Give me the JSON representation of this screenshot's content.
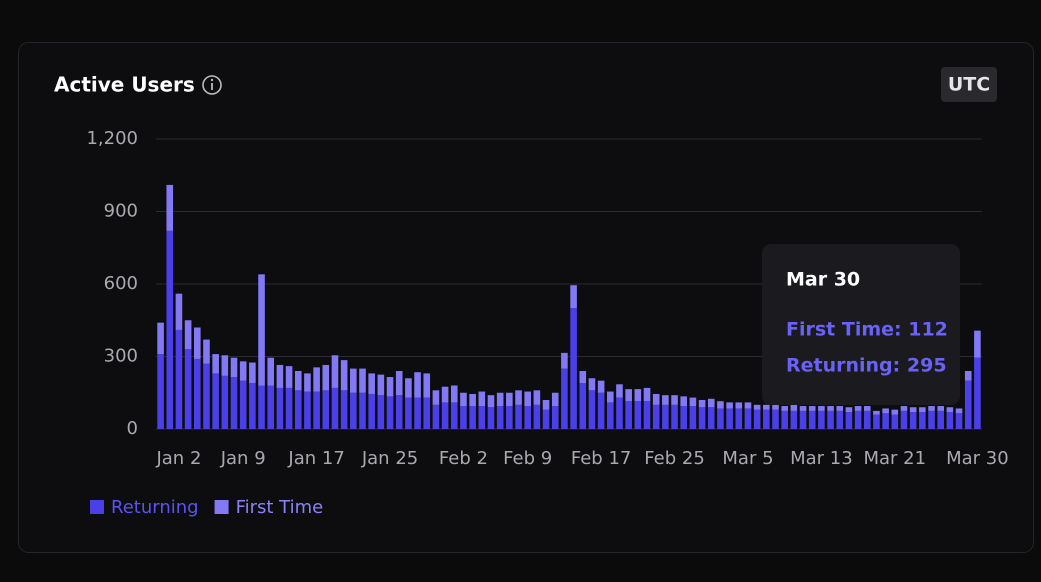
{
  "chart_data": {
    "type": "stacked_bar",
    "title": "Active Users",
    "timezone": "UTC",
    "categories": [
      null,
      null,
      "Jan 2",
      null,
      null,
      null,
      null,
      null,
      null,
      "Jan 9",
      null,
      null,
      null,
      null,
      null,
      null,
      null,
      "Jan 17",
      null,
      null,
      null,
      null,
      null,
      null,
      null,
      "Jan 25",
      null,
      null,
      null,
      null,
      null,
      null,
      null,
      "Feb 2",
      null,
      null,
      null,
      null,
      null,
      null,
      "Feb 9",
      null,
      null,
      null,
      null,
      null,
      null,
      null,
      "Feb 17",
      null,
      null,
      null,
      null,
      null,
      null,
      null,
      "Feb 25",
      null,
      null,
      null,
      null,
      null,
      null,
      null,
      "Mar 5",
      null,
      null,
      null,
      null,
      null,
      null,
      null,
      "Mar 13",
      null,
      null,
      null,
      null,
      null,
      null,
      null,
      "Mar 21",
      null,
      null,
      null,
      null,
      null,
      null,
      null,
      null,
      "Mar 30"
    ],
    "series": [
      {
        "name": "Returning",
        "color": "#4b3fe8",
        "values": [
          310,
          820,
          410,
          330,
          290,
          270,
          230,
          220,
          215,
          200,
          190,
          180,
          180,
          170,
          170,
          160,
          155,
          155,
          160,
          170,
          160,
          150,
          150,
          145,
          140,
          135,
          140,
          130,
          130,
          130,
          100,
          110,
          110,
          95,
          95,
          95,
          90,
          95,
          95,
          100,
          95,
          100,
          80,
          95,
          250,
          500,
          190,
          160,
          150,
          110,
          130,
          115,
          115,
          115,
          100,
          100,
          100,
          95,
          95,
          90,
          90,
          85,
          85,
          85,
          85,
          80,
          80,
          80,
          75,
          75,
          75,
          75,
          75,
          75,
          75,
          70,
          75,
          75,
          60,
          65,
          60,
          75,
          70,
          70,
          75,
          75,
          70,
          65,
          200,
          295
        ]
      },
      {
        "name": "First Time",
        "color": "#8379f4",
        "values": [
          130,
          190,
          150,
          120,
          130,
          100,
          80,
          85,
          80,
          80,
          85,
          460,
          115,
          95,
          90,
          80,
          75,
          100,
          105,
          135,
          125,
          100,
          100,
          85,
          85,
          80,
          100,
          80,
          105,
          100,
          60,
          65,
          70,
          55,
          50,
          60,
          50,
          55,
          55,
          60,
          60,
          60,
          40,
          55,
          65,
          95,
          50,
          50,
          50,
          45,
          55,
          50,
          50,
          55,
          45,
          40,
          40,
          40,
          35,
          30,
          35,
          30,
          25,
          25,
          25,
          20,
          20,
          25,
          20,
          25,
          20,
          20,
          20,
          20,
          20,
          20,
          20,
          20,
          15,
          20,
          20,
          20,
          20,
          20,
          20,
          20,
          20,
          20,
          40,
          112
        ]
      }
    ],
    "ylim": [
      0,
      1200
    ],
    "yticks": [
      0,
      300,
      600,
      900,
      {
        "value": 1200,
        "label": "1,200"
      }
    ],
    "grid": true,
    "tooltip": {
      "lines": [
        "First Time: 112",
        "Returning: 295"
      ]
    }
  }
}
